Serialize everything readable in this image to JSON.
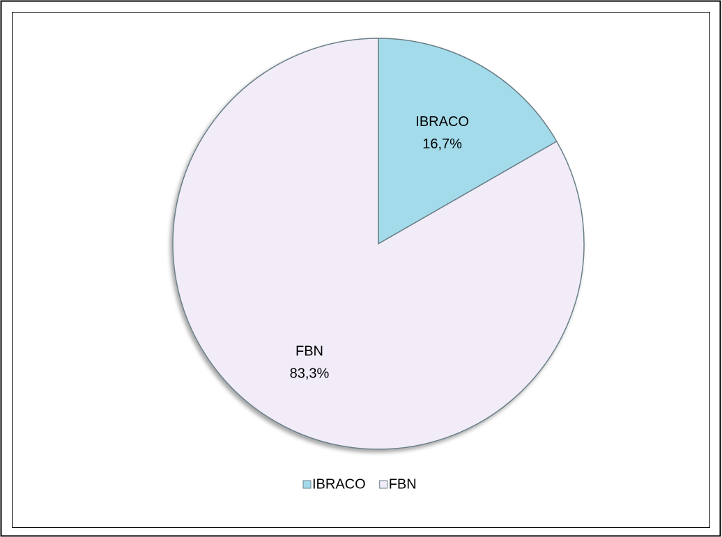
{
  "chart_data": {
    "type": "pie",
    "categories": [
      "IBRACO",
      "FBN"
    ],
    "values": [
      16.7,
      83.3
    ],
    "value_labels": [
      "16,7%",
      "83,3%"
    ],
    "colors": [
      "#a3dbea",
      "#f1ecf8"
    ],
    "legend": "bottom"
  }
}
